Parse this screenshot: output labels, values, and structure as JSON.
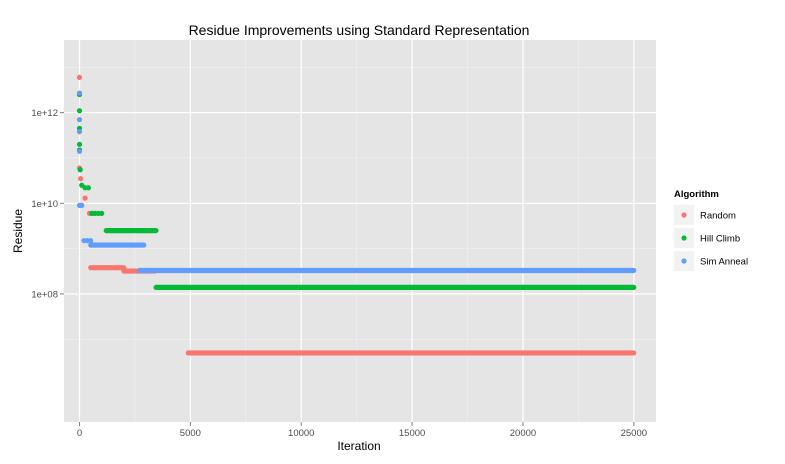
{
  "chart_data": {
    "type": "scatter",
    "title": "Residue Improvements using Standard Representation",
    "xlabel": "Iteration",
    "ylabel": "Residue",
    "x_ticks": [
      0,
      5000,
      10000,
      15000,
      20000,
      25000
    ],
    "x_tick_labels": [
      "0",
      "5000",
      "10000",
      "15000",
      "20000",
      "25000"
    ],
    "xlim": [
      -700,
      26000
    ],
    "y_scale": "log10",
    "y_ticks": [
      100000000,
      10000000000,
      1000000000000
    ],
    "y_tick_labels": [
      "1e+08",
      "1e+10",
      "1e+12"
    ],
    "ylim": [
      150000,
      40000000000000
    ],
    "grid": true,
    "legend": {
      "title": "Algorithm",
      "position": "right",
      "entries": [
        "Random",
        "Hill Climb",
        "Sim Anneal"
      ]
    },
    "series": [
      {
        "name": "Random",
        "color": "#f8766d",
        "points": [
          [
            0,
            6000000000000
          ],
          [
            0,
            60000000000
          ],
          [
            50,
            35000000000
          ],
          [
            250,
            13000000000
          ],
          [
            450,
            6000000000
          ],
          [
            600,
            6000000000
          ]
        ],
        "runs": [
          {
            "x0": 500,
            "x1": 2000,
            "y": 380000000
          },
          {
            "x0": 2000,
            "x1": 3400,
            "y": 320000000
          },
          {
            "x0": 4900,
            "x1": 25000,
            "y": 5000000
          }
        ]
      },
      {
        "name": "Hill Climb",
        "color": "#00ba38",
        "points": [
          [
            0,
            2500000000000
          ],
          [
            0,
            1100000000000
          ],
          [
            0,
            450000000000
          ],
          [
            0,
            200000000000
          ],
          [
            0,
            150000000000
          ],
          [
            30,
            55000000000
          ],
          [
            100,
            25000000000
          ],
          [
            250,
            22000000000
          ],
          [
            400,
            22000000000
          ],
          [
            550,
            6000000000
          ],
          [
            700,
            6000000000
          ],
          [
            850,
            6000000000
          ],
          [
            1000,
            6000000000
          ]
        ],
        "runs": [
          {
            "x0": 1200,
            "x1": 3450,
            "y": 2500000000
          },
          {
            "x0": 3450,
            "x1": 25000,
            "y": 140000000
          }
        ]
      },
      {
        "name": "Sim Anneal",
        "color": "#619cff",
        "points": [
          [
            0,
            2700000000000
          ],
          [
            0,
            700000000000
          ],
          [
            0,
            380000000000
          ],
          [
            0,
            140000000000
          ],
          [
            0,
            9000000000
          ],
          [
            100,
            9000000000
          ],
          [
            200,
            1500000000
          ],
          [
            350,
            1500000000
          ],
          [
            500,
            1500000000
          ]
        ],
        "runs": [
          {
            "x0": 500,
            "x1": 2900,
            "y": 1200000000
          },
          {
            "x0": 2700,
            "x1": 25000,
            "y": 330000000
          }
        ]
      }
    ]
  }
}
